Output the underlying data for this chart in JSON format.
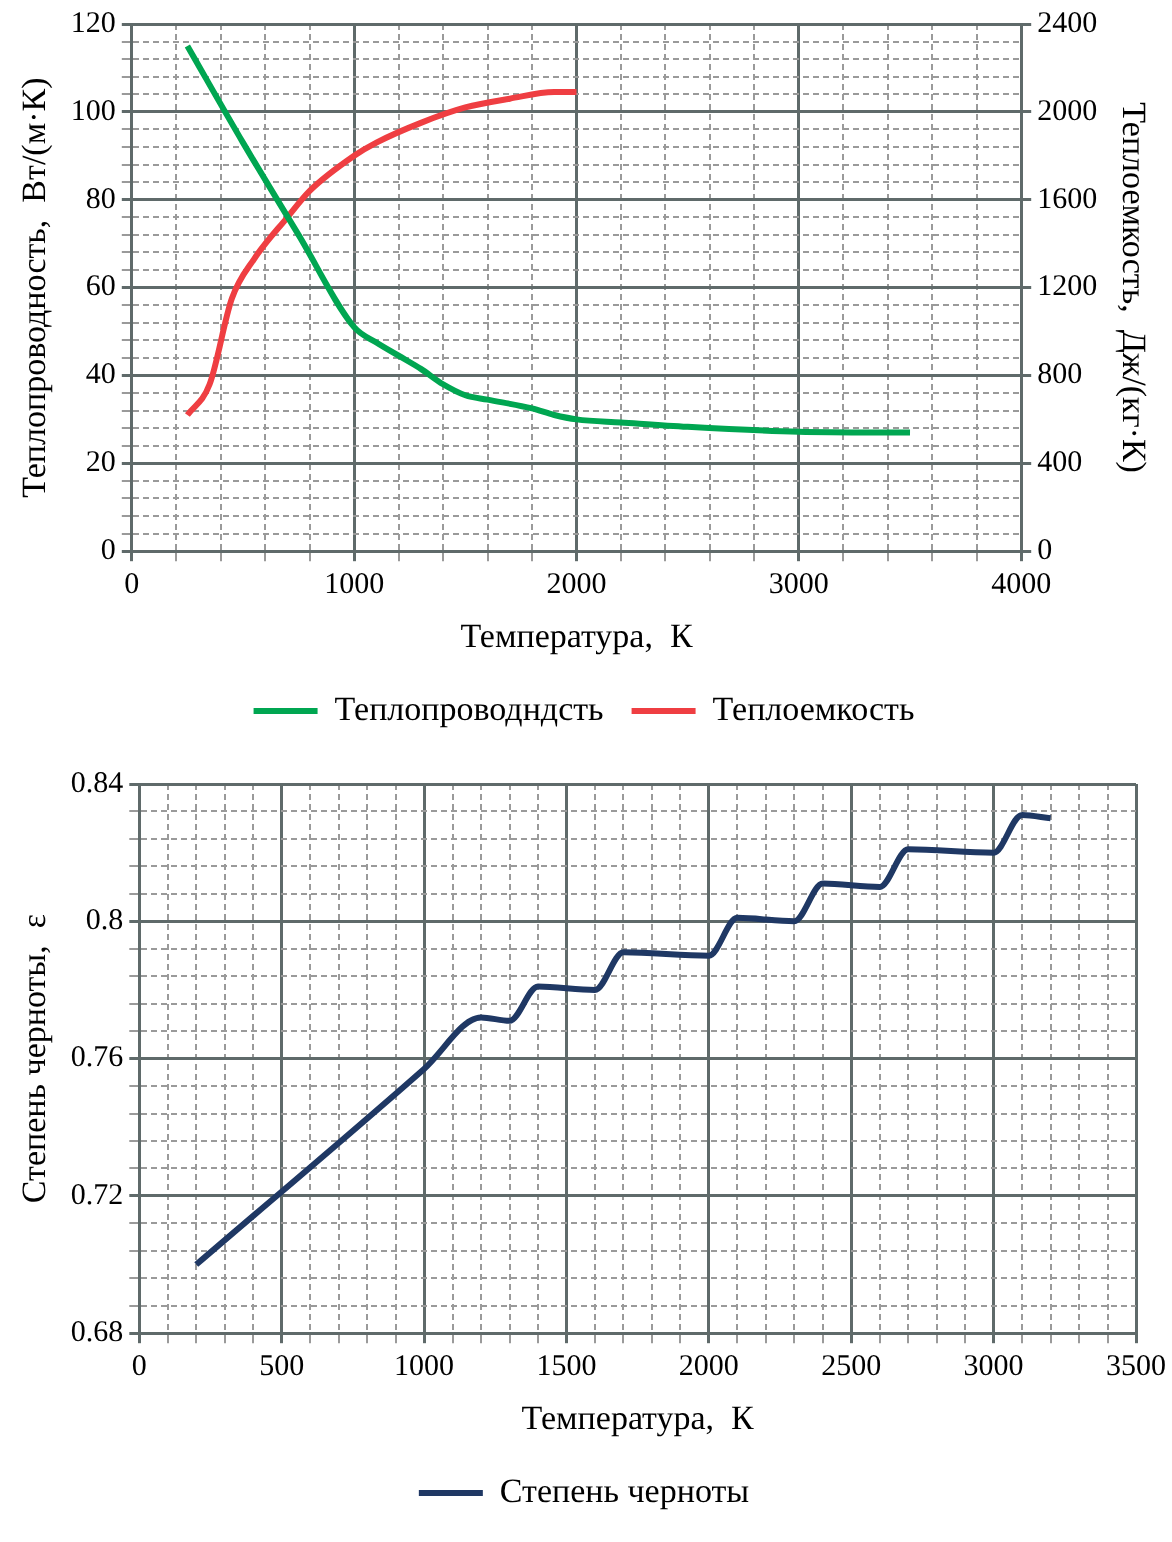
{
  "chart_data": [
    {
      "type": "line",
      "xlabel": "Температура,  К",
      "ylabel": "Теплопроводность,  Вт/(м·К)",
      "y2label": "Теплоемкость,  Дж/(кг·К)",
      "grid": true,
      "legend": "bottom",
      "xlim": [
        0,
        4000
      ],
      "ylim": [
        0,
        120
      ],
      "y2lim": [
        0,
        2400
      ],
      "xticks": [
        0,
        {
          "value": 200,
          "label": null
        },
        {
          "value": 400,
          "label": null
        },
        {
          "value": 600,
          "label": null
        },
        {
          "value": 800,
          "label": null
        },
        1000,
        {
          "value": 1200,
          "label": null
        },
        {
          "value": 1400,
          "label": null
        },
        {
          "value": 1600,
          "label": null
        },
        {
          "value": 1800,
          "label": null
        },
        2000,
        {
          "value": 2200,
          "label": null
        },
        {
          "value": 2400,
          "label": null
        },
        {
          "value": 2600,
          "label": null
        },
        {
          "value": 2800,
          "label": null
        },
        3000,
        {
          "value": 3200,
          "label": null
        },
        {
          "value": 3400,
          "label": null
        },
        {
          "value": 3600,
          "label": null
        },
        {
          "value": 3800,
          "label": null
        },
        4000
      ],
      "yticks": [
        0,
        {
          "value": 4,
          "label": null
        },
        {
          "value": 8,
          "label": null
        },
        {
          "value": 12,
          "label": null
        },
        {
          "value": 16,
          "label": null
        },
        20,
        {
          "value": 24,
          "label": null
        },
        {
          "value": 28,
          "label": null
        },
        {
          "value": 32,
          "label": null
        },
        {
          "value": 36,
          "label": null
        },
        40,
        {
          "value": 44,
          "label": null
        },
        {
          "value": 48,
          "label": null
        },
        {
          "value": 52,
          "label": null
        },
        {
          "value": 56,
          "label": null
        },
        60,
        {
          "value": 64,
          "label": null
        },
        {
          "value": 68,
          "label": null
        },
        {
          "value": 72,
          "label": null
        },
        {
          "value": 76,
          "label": null
        },
        80,
        {
          "value": 84,
          "label": null
        },
        {
          "value": 88,
          "label": null
        },
        {
          "value": 92,
          "label": null
        },
        {
          "value": 96,
          "label": null
        },
        100,
        {
          "value": 104,
          "label": null
        },
        {
          "value": 108,
          "label": null
        },
        {
          "value": 112,
          "label": null
        },
        {
          "value": 116,
          "label": null
        },
        120
      ],
      "y2ticks": [
        0,
        400,
        800,
        1200,
        1600,
        2000,
        2400
      ],
      "series": [
        {
          "name": "Теплопроводндсть",
          "color": "#00a651",
          "x": [
            250,
            500,
            750,
            1000,
            1100,
            1200,
            1300,
            1400,
            1500,
            1600,
            1800,
            1900,
            2000,
            2200,
            2500,
            3000,
            3500
          ],
          "values": [
            115,
            93,
            72,
            51,
            47.5,
            44.5,
            41.5,
            38,
            35.5,
            34.5,
            32.5,
            31,
            30,
            29.3,
            28.3,
            27.2,
            27
          ]
        },
        {
          "name": "Теплоемкость",
          "color": "#ef3e42",
          "axis": "y2",
          "x": [
            250,
            350,
            450,
            550,
            700,
            800,
            1000,
            1100,
            1300,
            1500,
            1700,
            1900,
            2000
          ],
          "values": [
            620,
            760,
            1150,
            1330,
            1520,
            1640,
            1800,
            1860,
            1950,
            2020,
            2060,
            2090,
            2090
          ]
        }
      ]
    },
    {
      "type": "line",
      "xlabel": "Температура,  К",
      "ylabel": "Степень черноты,  ε",
      "grid": true,
      "legend": "bottom",
      "xlim": [
        0,
        3500
      ],
      "ylim": [
        0.68,
        0.84
      ],
      "xticks": [
        0,
        {
          "value": 100,
          "label": null
        },
        {
          "value": 200,
          "label": null
        },
        {
          "value": 300,
          "label": null
        },
        {
          "value": 400,
          "label": null
        },
        500,
        {
          "value": 600,
          "label": null
        },
        {
          "value": 700,
          "label": null
        },
        {
          "value": 800,
          "label": null
        },
        {
          "value": 900,
          "label": null
        },
        1000,
        {
          "value": 1100,
          "label": null
        },
        {
          "value": 1200,
          "label": null
        },
        {
          "value": 1300,
          "label": null
        },
        {
          "value": 1400,
          "label": null
        },
        1500,
        {
          "value": 1600,
          "label": null
        },
        {
          "value": 1700,
          "label": null
        },
        {
          "value": 1800,
          "label": null
        },
        {
          "value": 1900,
          "label": null
        },
        2000,
        {
          "value": 2100,
          "label": null
        },
        {
          "value": 2200,
          "label": null
        },
        {
          "value": 2300,
          "label": null
        },
        {
          "value": 2400,
          "label": null
        },
        2500,
        {
          "value": 2600,
          "label": null
        },
        {
          "value": 2700,
          "label": null
        },
        {
          "value": 2800,
          "label": null
        },
        {
          "value": 2900,
          "label": null
        },
        3000,
        {
          "value": 3100,
          "label": null
        },
        {
          "value": 3200,
          "label": null
        },
        {
          "value": 3300,
          "label": null
        },
        {
          "value": 3400,
          "label": null
        },
        3500
      ],
      "yticks": [
        0.68,
        {
          "value": 0.688,
          "label": null
        },
        {
          "value": 0.696,
          "label": null
        },
        {
          "value": 0.704,
          "label": null
        },
        {
          "value": 0.712,
          "label": null
        },
        0.72,
        {
          "value": 0.728,
          "label": null
        },
        {
          "value": 0.736,
          "label": null
        },
        {
          "value": 0.744,
          "label": null
        },
        {
          "value": 0.752,
          "label": null
        },
        0.76,
        {
          "value": 0.768,
          "label": null
        },
        {
          "value": 0.776,
          "label": null
        },
        {
          "value": 0.784,
          "label": null
        },
        {
          "value": 0.792,
          "label": null
        },
        0.8,
        {
          "value": 0.808,
          "label": null
        },
        {
          "value": 0.816,
          "label": null
        },
        {
          "value": 0.824,
          "label": null
        },
        {
          "value": 0.832,
          "label": null
        },
        0.84
      ],
      "series": [
        {
          "name": "Степень черноты",
          "color": "#1f3864",
          "x": [
            200,
            1000,
            1200,
            1300,
            1400,
            1600,
            1700,
            2000,
            2100,
            2300,
            2400,
            2600,
            2700,
            3000,
            3100,
            3200
          ],
          "values": [
            0.7,
            0.757,
            0.772,
            0.771,
            0.781,
            0.78,
            0.791,
            0.79,
            0.801,
            0.8,
            0.811,
            0.81,
            0.821,
            0.82,
            0.831,
            0.83
          ]
        }
      ]
    }
  ]
}
